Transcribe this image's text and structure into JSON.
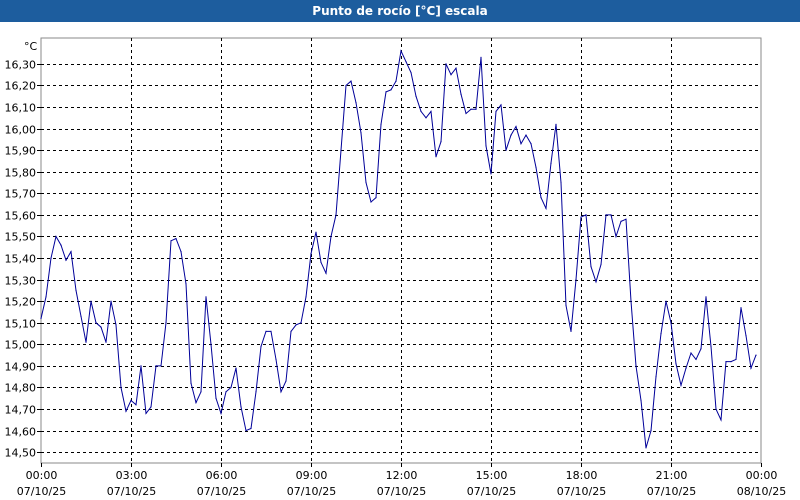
{
  "title": "Punto de rocío [°C] escala",
  "chart_data": {
    "type": "line",
    "title": "Punto de rocío [°C] escala",
    "ylabel": "°C",
    "xlabel": "",
    "grid": true,
    "line_color": "#000099",
    "ylim": [
      14.45,
      16.42
    ],
    "yticks": [
      "14,50",
      "14,60",
      "14,70",
      "14,80",
      "14,90",
      "15,00",
      "15,10",
      "15,20",
      "15,30",
      "15,40",
      "15,50",
      "15,60",
      "15,70",
      "15,80",
      "15,90",
      "16,00",
      "16,10",
      "16,20",
      "16,30"
    ],
    "xticks": [
      {
        "time": "00:00",
        "date": "07/10/25"
      },
      {
        "time": "03:00",
        "date": "07/10/25"
      },
      {
        "time": "06:00",
        "date": "07/10/25"
      },
      {
        "time": "09:00",
        "date": "07/10/25"
      },
      {
        "time": "12:00",
        "date": "07/10/25"
      },
      {
        "time": "15:00",
        "date": "07/10/25"
      },
      {
        "time": "18:00",
        "date": "07/10/25"
      },
      {
        "time": "21:00",
        "date": "07/10/25"
      },
      {
        "time": "00:00",
        "date": "08/10/25"
      }
    ],
    "x_range": [
      "07/10/25 00:00",
      "08/10/25 00:00"
    ],
    "series": [
      {
        "points": [
          [
            "00:00",
            15.12
          ],
          [
            "00:10",
            15.22
          ],
          [
            "00:20",
            15.4
          ],
          [
            "00:30",
            15.5
          ],
          [
            "00:40",
            15.46
          ],
          [
            "00:50",
            15.39
          ],
          [
            "01:00",
            15.43
          ],
          [
            "01:10",
            15.25
          ],
          [
            "01:20",
            15.13
          ],
          [
            "01:30",
            15.01
          ],
          [
            "01:40",
            15.2
          ],
          [
            "01:50",
            15.1
          ],
          [
            "02:00",
            15.08
          ],
          [
            "02:10",
            15.01
          ],
          [
            "02:20",
            15.2
          ],
          [
            "02:30",
            15.09
          ],
          [
            "02:40",
            14.8
          ],
          [
            "02:50",
            14.69
          ],
          [
            "03:00",
            14.74
          ],
          [
            "03:10",
            14.72
          ],
          [
            "03:20",
            14.9
          ],
          [
            "03:30",
            14.68
          ],
          [
            "03:40",
            14.71
          ],
          [
            "03:50",
            14.9
          ],
          [
            "04:00",
            14.9
          ],
          [
            "04:10",
            15.1
          ],
          [
            "04:20",
            15.48
          ],
          [
            "04:30",
            15.49
          ],
          [
            "04:40",
            15.43
          ],
          [
            "04:50",
            15.28
          ],
          [
            "05:00",
            14.82
          ],
          [
            "05:10",
            14.73
          ],
          [
            "05:20",
            14.78
          ],
          [
            "05:30",
            15.22
          ],
          [
            "05:40",
            15.0
          ],
          [
            "05:50",
            14.75
          ],
          [
            "06:00",
            14.68
          ],
          [
            "06:10",
            14.78
          ],
          [
            "06:20",
            14.8
          ],
          [
            "06:30",
            14.89
          ],
          [
            "06:40",
            14.71
          ],
          [
            "06:50",
            14.6
          ],
          [
            "07:00",
            14.61
          ],
          [
            "07:10",
            14.78
          ],
          [
            "07:20",
            14.99
          ],
          [
            "07:30",
            15.06
          ],
          [
            "07:40",
            15.06
          ],
          [
            "07:50",
            14.93
          ],
          [
            "08:00",
            14.78
          ],
          [
            "08:10",
            14.83
          ],
          [
            "08:20",
            15.06
          ],
          [
            "08:30",
            15.09
          ],
          [
            "08:40",
            15.1
          ],
          [
            "08:50",
            15.22
          ],
          [
            "09:00",
            15.42
          ],
          [
            "09:10",
            15.52
          ],
          [
            "09:20",
            15.38
          ],
          [
            "09:30",
            15.33
          ],
          [
            "09:40",
            15.5
          ],
          [
            "09:50",
            15.6
          ],
          [
            "10:00",
            15.9
          ],
          [
            "10:10",
            16.2
          ],
          [
            "10:20",
            16.22
          ],
          [
            "10:30",
            16.12
          ],
          [
            "10:40",
            15.98
          ],
          [
            "10:50",
            15.75
          ],
          [
            "11:00",
            15.66
          ],
          [
            "11:10",
            15.68
          ],
          [
            "11:20",
            16.02
          ],
          [
            "11:30",
            16.17
          ],
          [
            "11:40",
            16.18
          ],
          [
            "11:50",
            16.22
          ],
          [
            "12:00",
            16.36
          ],
          [
            "12:10",
            16.31
          ],
          [
            "12:20",
            16.26
          ],
          [
            "12:30",
            16.15
          ],
          [
            "12:40",
            16.08
          ],
          [
            "12:50",
            16.05
          ],
          [
            "13:00",
            16.08
          ],
          [
            "13:10",
            15.87
          ],
          [
            "13:20",
            15.94
          ],
          [
            "13:30",
            16.3
          ],
          [
            "13:40",
            16.25
          ],
          [
            "13:50",
            16.28
          ],
          [
            "14:00",
            16.16
          ],
          [
            "14:10",
            16.07
          ],
          [
            "14:20",
            16.09
          ],
          [
            "14:30",
            16.09
          ],
          [
            "14:40",
            16.33
          ],
          [
            "14:50",
            15.92
          ],
          [
            "15:00",
            15.79
          ],
          [
            "15:10",
            16.08
          ],
          [
            "15:20",
            16.11
          ],
          [
            "15:30",
            15.9
          ],
          [
            "15:40",
            15.97
          ],
          [
            "15:50",
            16.01
          ],
          [
            "16:00",
            15.93
          ],
          [
            "16:10",
            15.97
          ],
          [
            "16:20",
            15.93
          ],
          [
            "16:30",
            15.82
          ],
          [
            "16:40",
            15.68
          ],
          [
            "16:50",
            15.63
          ],
          [
            "17:00",
            15.84
          ],
          [
            "17:10",
            16.02
          ],
          [
            "17:20",
            15.75
          ],
          [
            "17:30",
            15.18
          ],
          [
            "17:40",
            15.06
          ],
          [
            "17:50",
            15.3
          ],
          [
            "18:00",
            15.59
          ],
          [
            "18:10",
            15.6
          ],
          [
            "18:20",
            15.36
          ],
          [
            "18:30",
            15.29
          ],
          [
            "18:40",
            15.37
          ],
          [
            "18:50",
            15.6
          ],
          [
            "19:00",
            15.6
          ],
          [
            "19:10",
            15.5
          ],
          [
            "19:20",
            15.57
          ],
          [
            "19:30",
            15.58
          ],
          [
            "19:40",
            15.2
          ],
          [
            "19:50",
            14.9
          ],
          [
            "20:00",
            14.74
          ],
          [
            "20:10",
            14.52
          ],
          [
            "20:20",
            14.6
          ],
          [
            "20:30",
            14.85
          ],
          [
            "20:40",
            15.05
          ],
          [
            "20:50",
            15.2
          ],
          [
            "21:00",
            15.1
          ],
          [
            "21:10",
            14.91
          ],
          [
            "21:20",
            14.81
          ],
          [
            "21:30",
            14.89
          ],
          [
            "21:40",
            14.96
          ],
          [
            "21:50",
            14.93
          ],
          [
            "22:00",
            14.98
          ],
          [
            "22:10",
            15.22
          ],
          [
            "22:20",
            14.99
          ],
          [
            "22:30",
            14.7
          ],
          [
            "22:40",
            14.65
          ],
          [
            "22:50",
            14.92
          ],
          [
            "23:00",
            14.92
          ],
          [
            "23:10",
            14.93
          ],
          [
            "23:20",
            15.17
          ],
          [
            "23:30",
            15.04
          ],
          [
            "23:40",
            14.89
          ],
          [
            "23:50",
            14.95
          ]
        ]
      }
    ]
  }
}
